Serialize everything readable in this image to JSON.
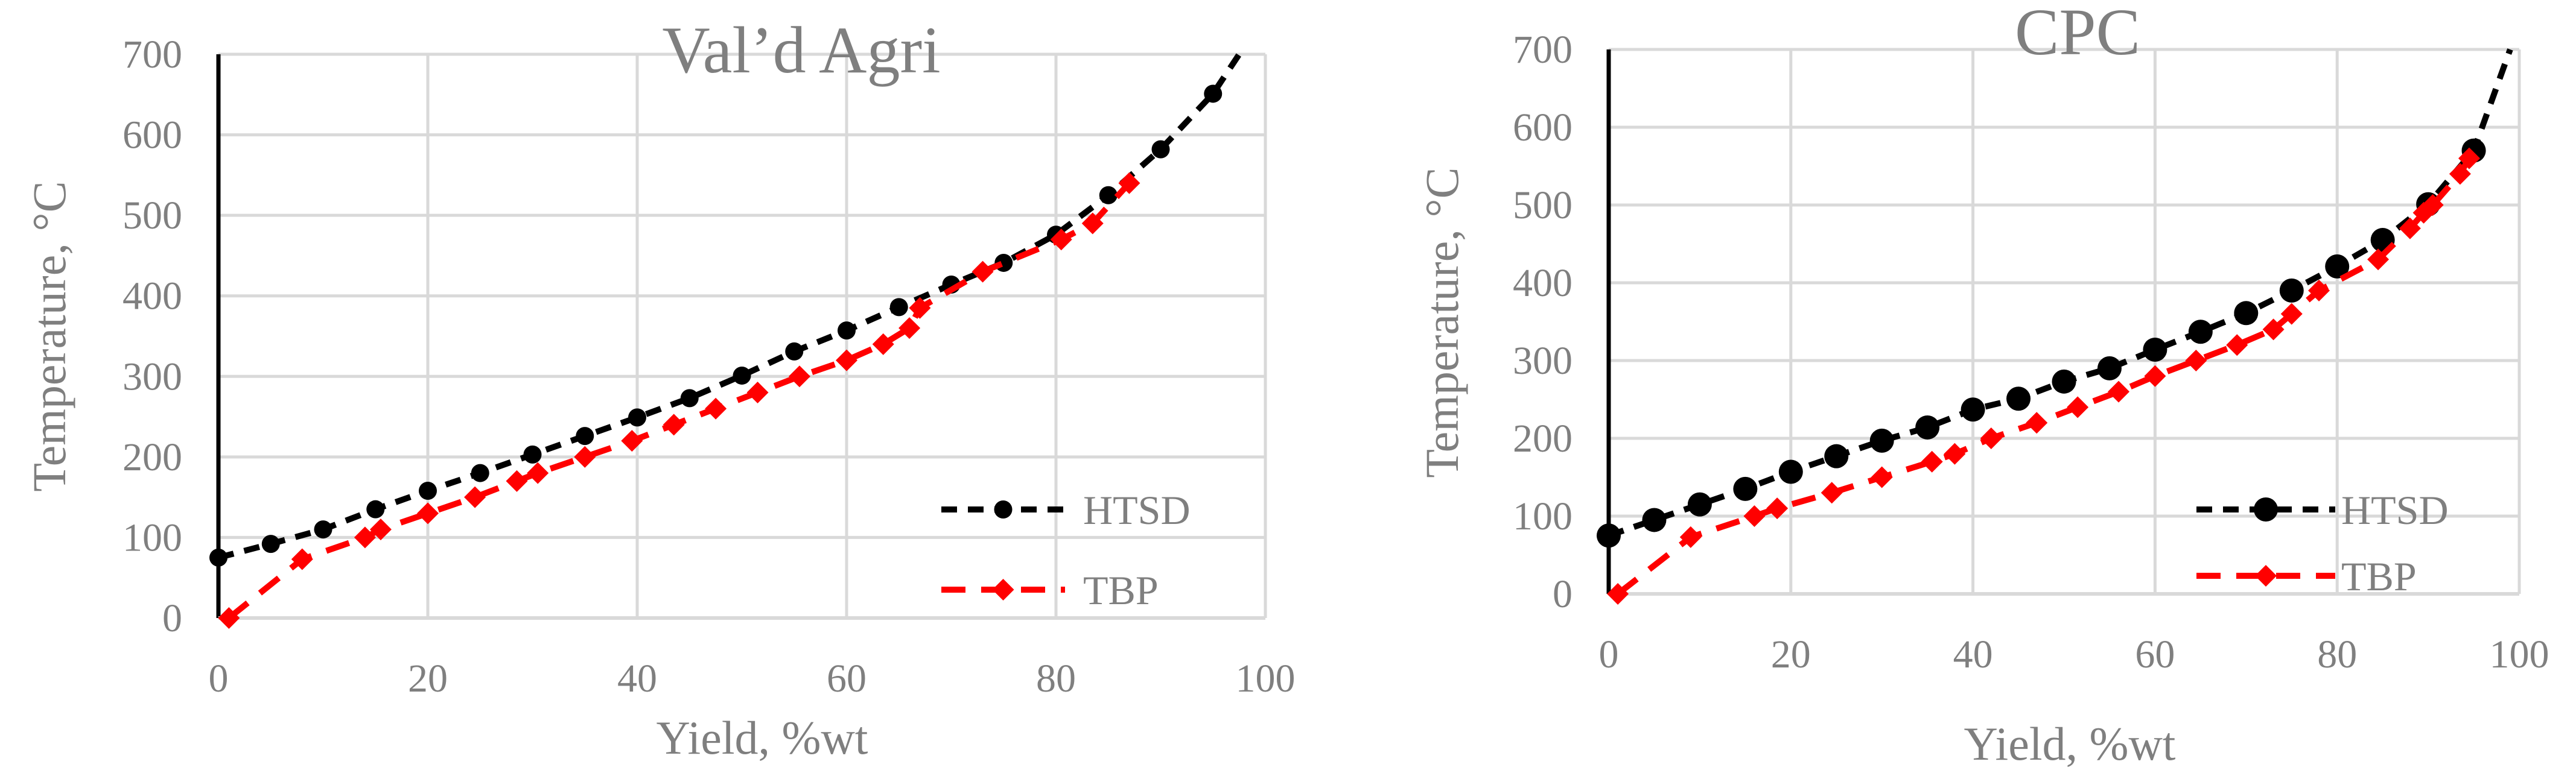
{
  "colors": {
    "htsd": "#000000",
    "tbp": "#ff0000",
    "grid": "#d9d9d9",
    "axis": "#000000",
    "text": "#7f7f7f"
  },
  "chart_data": [
    {
      "type": "line",
      "title": "Val’d Agri",
      "xlabel": "Yield, %wt",
      "ylabel": "Temperature, °C",
      "xlim": [
        0,
        100
      ],
      "ylim": [
        0,
        700
      ],
      "x_ticks": [
        "0",
        "20",
        "40",
        "60",
        "80",
        "100"
      ],
      "y_ticks": [
        "0",
        "100",
        "200",
        "300",
        "400",
        "500",
        "600",
        "700"
      ],
      "grid": true,
      "legend_position": "bottom-right",
      "series": [
        {
          "name": "HTSD",
          "color": "#000000",
          "marker": "circle",
          "line_style": "dashed",
          "x": [
            0,
            5,
            10,
            15,
            20,
            25,
            30,
            35,
            40,
            45,
            50,
            55,
            60,
            65,
            70,
            75,
            80,
            85,
            90,
            95
          ],
          "y": [
            75,
            92,
            110,
            135,
            158,
            180,
            203,
            226,
            249,
            273,
            301,
            331,
            357,
            386,
            414,
            441,
            476,
            525,
            582,
            651
          ],
          "extend_to": [
            97.5,
            700
          ]
        },
        {
          "name": "TBP",
          "color": "#ff0000",
          "marker": "diamond",
          "line_style": "dashed",
          "x": [
            1,
            8,
            14,
            15.5,
            20,
            24.5,
            28.5,
            30.5,
            35,
            39.5,
            43.5,
            47.5,
            51.5,
            55.5,
            60,
            63.5,
            66,
            67,
            73,
            80.5,
            83.5,
            87
          ],
          "y": [
            0,
            73,
            100,
            110,
            130,
            150,
            170,
            180,
            200,
            220,
            240,
            260,
            280,
            300,
            320,
            340,
            360,
            385,
            430,
            470,
            490,
            540
          ]
        }
      ]
    },
    {
      "type": "line",
      "title": "CPC",
      "xlabel": "Yield, %wt",
      "ylabel": "Temperature, °C",
      "xlim": [
        0,
        100
      ],
      "ylim": [
        0,
        700
      ],
      "x_ticks": [
        "0",
        "20",
        "40",
        "60",
        "80",
        "100"
      ],
      "y_ticks": [
        "0",
        "100",
        "200",
        "300",
        "400",
        "500",
        "600",
        "700"
      ],
      "grid": true,
      "legend_position": "bottom-right",
      "series": [
        {
          "name": "HTSD",
          "color": "#000000",
          "marker": "circle",
          "line_style": "dashed",
          "x": [
            0,
            5,
            10,
            15,
            20,
            25,
            30,
            35,
            40,
            45,
            50,
            55,
            60,
            65,
            70,
            75,
            80,
            85,
            90,
            95
          ],
          "y": [
            75,
            95,
            115,
            135,
            157,
            177,
            197,
            214,
            237,
            251,
            273,
            290,
            314,
            337,
            361,
            390,
            421,
            455,
            501,
            570
          ],
          "extend_to": [
            99,
            700
          ]
        },
        {
          "name": "TBP",
          "color": "#ff0000",
          "marker": "diamond",
          "line_style": "dashed",
          "x": [
            1,
            9,
            16,
            18.5,
            24.5,
            30,
            35.5,
            38,
            42,
            47,
            51.5,
            56,
            60,
            64.5,
            69,
            73,
            75,
            78,
            84.5,
            88,
            89.5,
            90.5,
            93.5,
            94.5
          ],
          "y": [
            0,
            73,
            100,
            110,
            130,
            150,
            170,
            180,
            200,
            220,
            240,
            260,
            280,
            300,
            320,
            340,
            360,
            390,
            430,
            470,
            490,
            500,
            540,
            560
          ]
        }
      ]
    }
  ]
}
